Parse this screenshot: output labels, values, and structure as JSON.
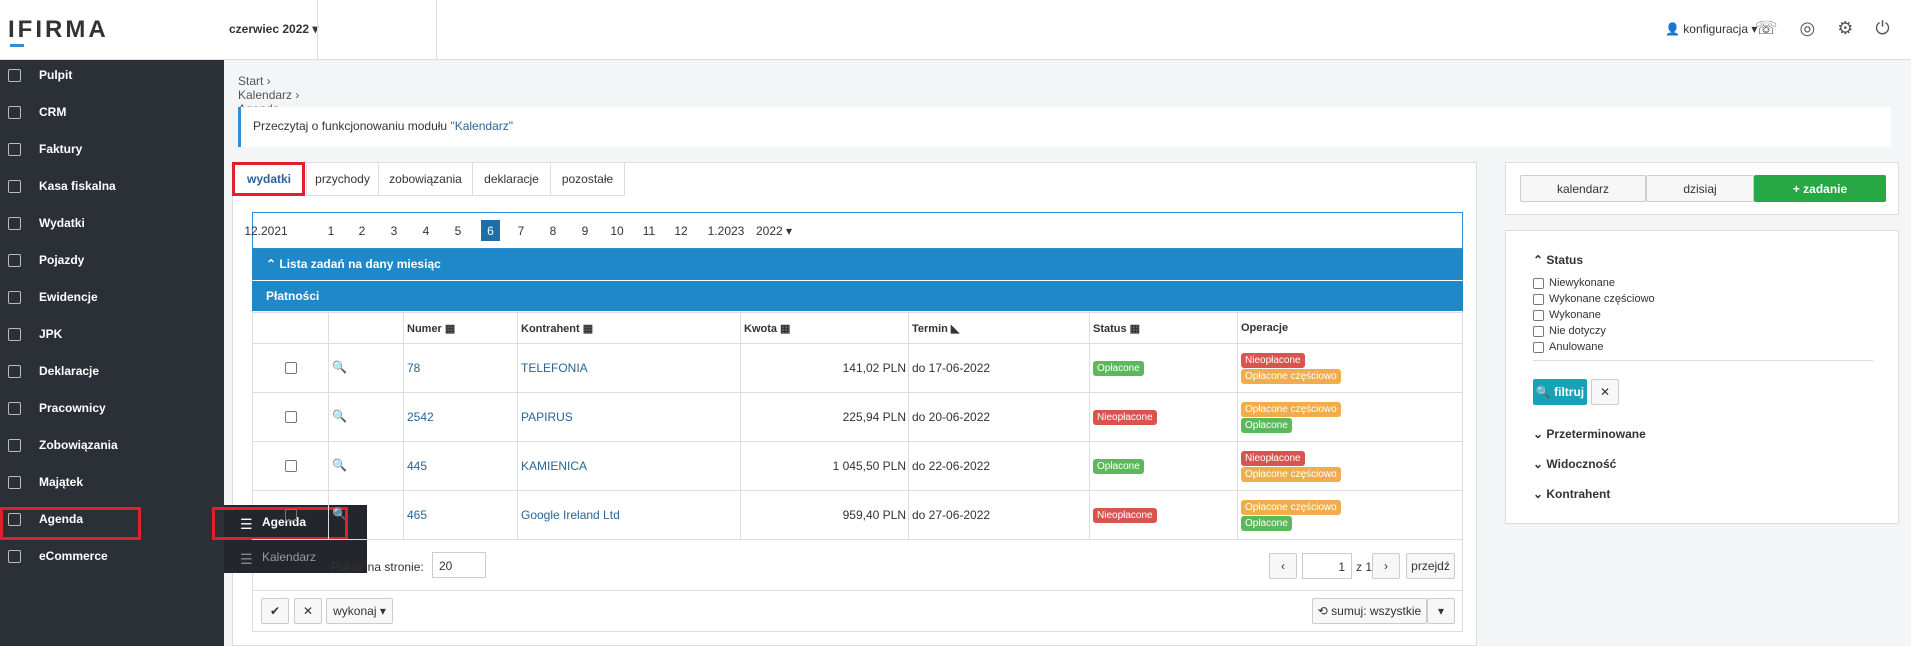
{
  "header": {
    "logo": "IFIRMA",
    "period": "czerwiec 2022",
    "user": "konfiguracja"
  },
  "sidebar": {
    "items": [
      "Pulpit",
      "CRM",
      "Faktury",
      "Kasa fiskalna",
      "Wydatki",
      "Pojazdy",
      "Ewidencje",
      "JPK",
      "Deklaracje",
      "Pracownicy",
      "Zobowiązania",
      "Majątek",
      "Agenda",
      "eCommerce"
    ],
    "submenu": [
      "Agenda",
      "Kalendarz"
    ]
  },
  "breadcrumb": [
    "Start",
    "Kalendarz",
    "Agenda"
  ],
  "info": {
    "text": "Przeczytaj o funkcjonowaniu modułu ",
    "link": "\"Kalendarz\""
  },
  "tabs": [
    "wydatki",
    "przychody",
    "zobowiązania",
    "deklaracje",
    "pozostałe"
  ],
  "months": [
    "12.2021",
    "1",
    "2",
    "3",
    "4",
    "5",
    "6",
    "7",
    "8",
    "9",
    "10",
    "11",
    "12",
    "1.2023",
    "2022"
  ],
  "section": {
    "title": "Lista zadań na dany miesiąc",
    "subtitle": "Płatności"
  },
  "table": {
    "columns": [
      "Numer",
      "Kontrahent",
      "Kwota",
      "Termin",
      "Status",
      "Operacje"
    ],
    "rows": [
      {
        "number": "78",
        "contractor": "TELEFONIA",
        "amount": "141,02 PLN",
        "due": "do 17-06-2022",
        "status": {
          "text": "Opłacone",
          "color": "#5cb85c"
        },
        "operations": [
          {
            "text": "Nieopłacone",
            "color": "#d9534f"
          },
          {
            "text": "Opłacone częściowo",
            "color": "#f0ad4e"
          }
        ]
      },
      {
        "number": "2542",
        "contractor": "PAPIRUS",
        "amount": "225,94 PLN",
        "due": "do 20-06-2022",
        "status": {
          "text": "Nieopłacone",
          "color": "#d9534f"
        },
        "operations": [
          {
            "text": "Opłacone częściowo",
            "color": "#f0ad4e"
          },
          {
            "text": "Opłacone",
            "color": "#5cb85c"
          }
        ]
      },
      {
        "number": "445",
        "contractor": "KAMIENICA",
        "amount": "1 045,50 PLN",
        "due": "do 22-06-2022",
        "status": {
          "text": "Opłacone",
          "color": "#5cb85c"
        },
        "operations": [
          {
            "text": "Nieopłacone",
            "color": "#d9534f"
          },
          {
            "text": "Opłacone częściowo",
            "color": "#f0ad4e"
          }
        ]
      },
      {
        "number": "465",
        "contractor": "Google Ireland Ltd",
        "amount": "959,40 PLN",
        "due": "do 27-06-2022",
        "status": {
          "text": "Nieopłacone",
          "color": "#d9534f"
        },
        "operations": [
          {
            "text": "Opłacone częściowo",
            "color": "#f0ad4e"
          },
          {
            "text": "Opłacone",
            "color": "#5cb85c"
          }
        ]
      }
    ]
  },
  "pagination": {
    "per_page_label": "Pokaż na stronie:",
    "per_page": "20",
    "page": "1",
    "of": "z 1",
    "go": "przejdź"
  },
  "actions": {
    "execute": "wykonaj",
    "sum": "sumuj: wszystkie"
  },
  "right": {
    "buttons": [
      "kalendarz",
      "dzisiaj",
      "zadanie"
    ],
    "status_title": "Status",
    "statuses": [
      "Niewykonane",
      "Wykonane częściowo",
      "Wykonane",
      "Nie dotyczy",
      "Anulowane"
    ],
    "filter": "filtruj",
    "sections": [
      "Przeterminowane",
      "Widoczność",
      "Kontrahent"
    ]
  }
}
